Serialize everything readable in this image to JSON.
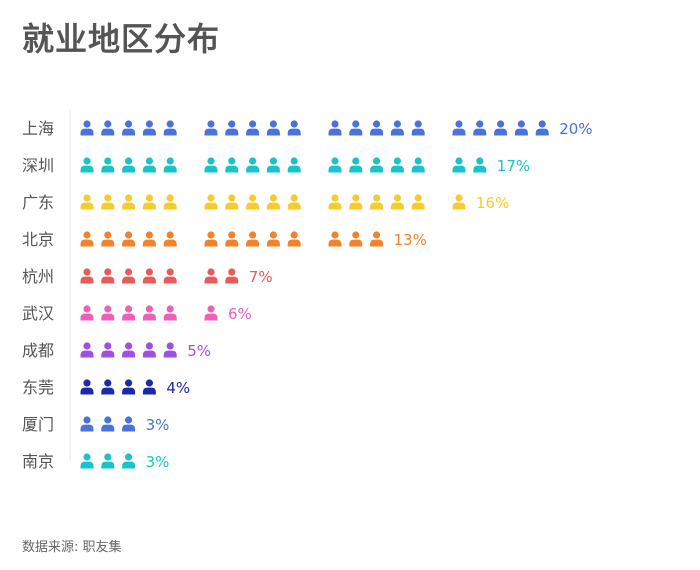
{
  "title": "就业地区分布",
  "source": "数据来源: 职友集",
  "chart_data": {
    "type": "pictograph",
    "unit_percent": 1,
    "group_size": 5,
    "categories": [
      "上海",
      "深圳",
      "广东",
      "北京",
      "杭州",
      "武汉",
      "成都",
      "东莞",
      "厦门",
      "南京"
    ],
    "values": [
      20,
      17,
      16,
      13,
      7,
      6,
      5,
      4,
      3,
      3
    ],
    "value_labels": [
      "20%",
      "17%",
      "16%",
      "13%",
      "7%",
      "6%",
      "5%",
      "4%",
      "3%",
      "3%"
    ],
    "colors": [
      "#4a72d8",
      "#1ac3c8",
      "#f7cb2c",
      "#f0832b",
      "#e85b5b",
      "#ee5fb9",
      "#a24ee0",
      "#1d2aa8",
      "#4a72d8",
      "#1ac3c8"
    ],
    "label_color": "#555555",
    "axis_line_color": "#e6e6e6"
  }
}
